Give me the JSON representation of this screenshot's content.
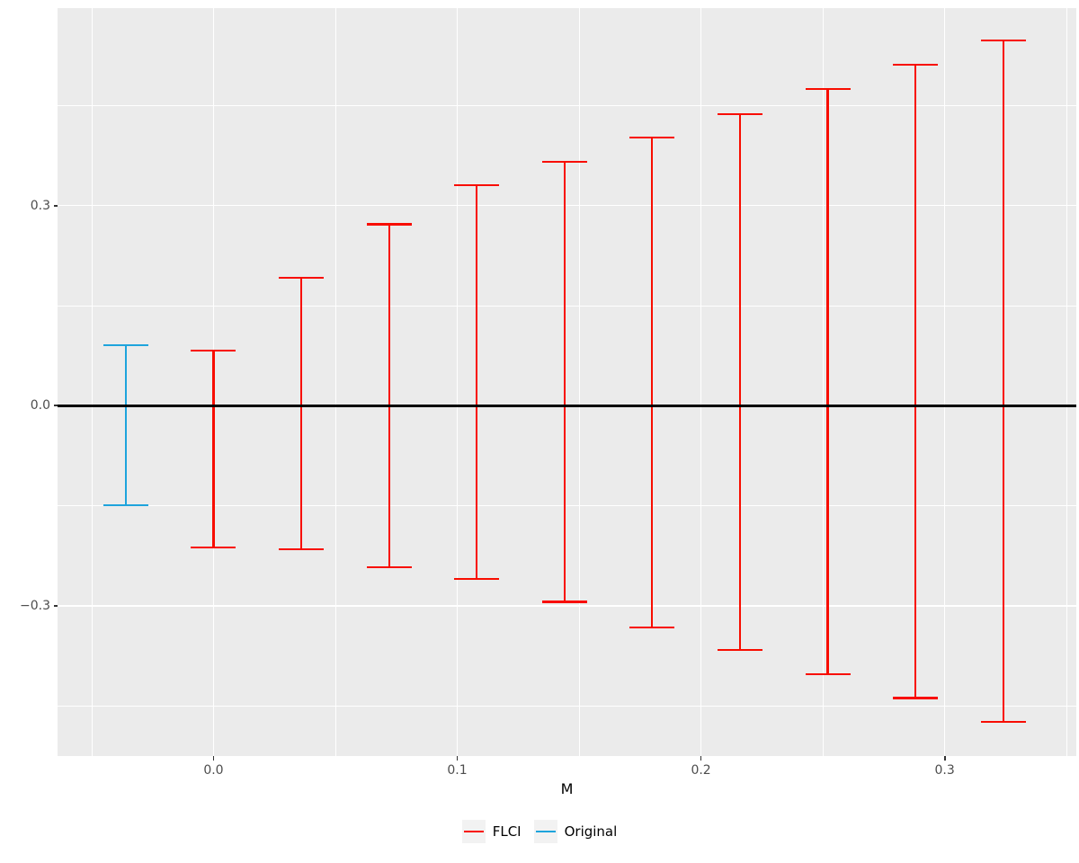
{
  "chart_data": {
    "type": "errorbar",
    "title": "",
    "xlabel": "M",
    "ylabel": "",
    "xlim": [
      -0.064,
      0.354
    ],
    "ylim": [
      -0.525,
      0.596
    ],
    "grid": true,
    "hline": 0.0,
    "x_major_ticks": [
      {
        "value": 0.0,
        "label": "0.0"
      },
      {
        "value": 0.1,
        "label": "0.1"
      },
      {
        "value": 0.2,
        "label": "0.2"
      },
      {
        "value": 0.3,
        "label": "0.3"
      }
    ],
    "x_minor_ticks": [
      -0.05,
      0.05,
      0.15,
      0.25,
      0.35
    ],
    "y_major_ticks": [
      {
        "value": 0.3,
        "label": "0.3"
      },
      {
        "value": 0.0,
        "label": "0.0"
      },
      {
        "value": -0.3,
        "label": "−0.3"
      }
    ],
    "y_minor_ticks": [
      0.45,
      0.15,
      -0.15,
      -0.45
    ],
    "series": [
      {
        "name": "FLCI",
        "color": "#F80D00",
        "points": [
          {
            "x": 0.0,
            "lower": -0.212,
            "upper": 0.083
          },
          {
            "x": 0.036,
            "lower": -0.215,
            "upper": 0.192
          },
          {
            "x": 0.072,
            "lower": -0.242,
            "upper": 0.272
          },
          {
            "x": 0.108,
            "lower": -0.26,
            "upper": 0.331
          },
          {
            "x": 0.144,
            "lower": -0.294,
            "upper": 0.366
          },
          {
            "x": 0.18,
            "lower": -0.332,
            "upper": 0.402
          },
          {
            "x": 0.216,
            "lower": -0.366,
            "upper": 0.437
          },
          {
            "x": 0.252,
            "lower": -0.402,
            "upper": 0.475
          },
          {
            "x": 0.288,
            "lower": -0.438,
            "upper": 0.511
          },
          {
            "x": 0.324,
            "lower": -0.474,
            "upper": 0.547
          }
        ]
      },
      {
        "name": "Original",
        "color": "#1EA4DC",
        "points": [
          {
            "x": -0.036,
            "lower": -0.149,
            "upper": 0.091
          }
        ]
      }
    ],
    "legend": {
      "position": "bottom",
      "entries": [
        {
          "label": "FLCI",
          "color": "#F80D00"
        },
        {
          "label": "Original",
          "color": "#1EA4DC"
        }
      ]
    }
  },
  "colors": {
    "panel_background": "#EBEBEB",
    "gridline": "#FFFFFF",
    "zero_line": "#000000",
    "axis_text": "#4D4D4D",
    "tick_mark": "#333333",
    "legend_key_background": "#F2F2F2"
  }
}
